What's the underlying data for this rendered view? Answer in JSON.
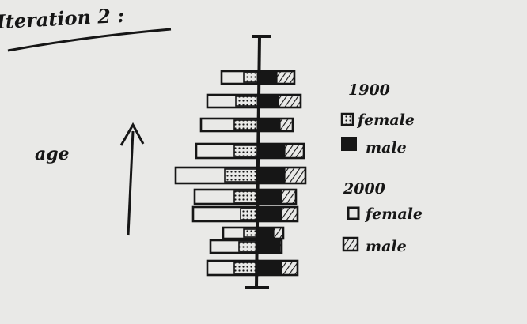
{
  "title": "Iteration 2 :",
  "axis_label": "age",
  "legend": {
    "groups": [
      {
        "year": "1900",
        "items": [
          {
            "label": "female",
            "swatch": "dotted"
          },
          {
            "label": "male",
            "swatch": "solid"
          }
        ]
      },
      {
        "year": "2000",
        "items": [
          {
            "label": "female",
            "swatch": "empty"
          },
          {
            "label": "male",
            "swatch": "hatched"
          }
        ]
      }
    ]
  },
  "colors": {
    "paper": "#e9e9e7",
    "ink": "#161616"
  }
}
